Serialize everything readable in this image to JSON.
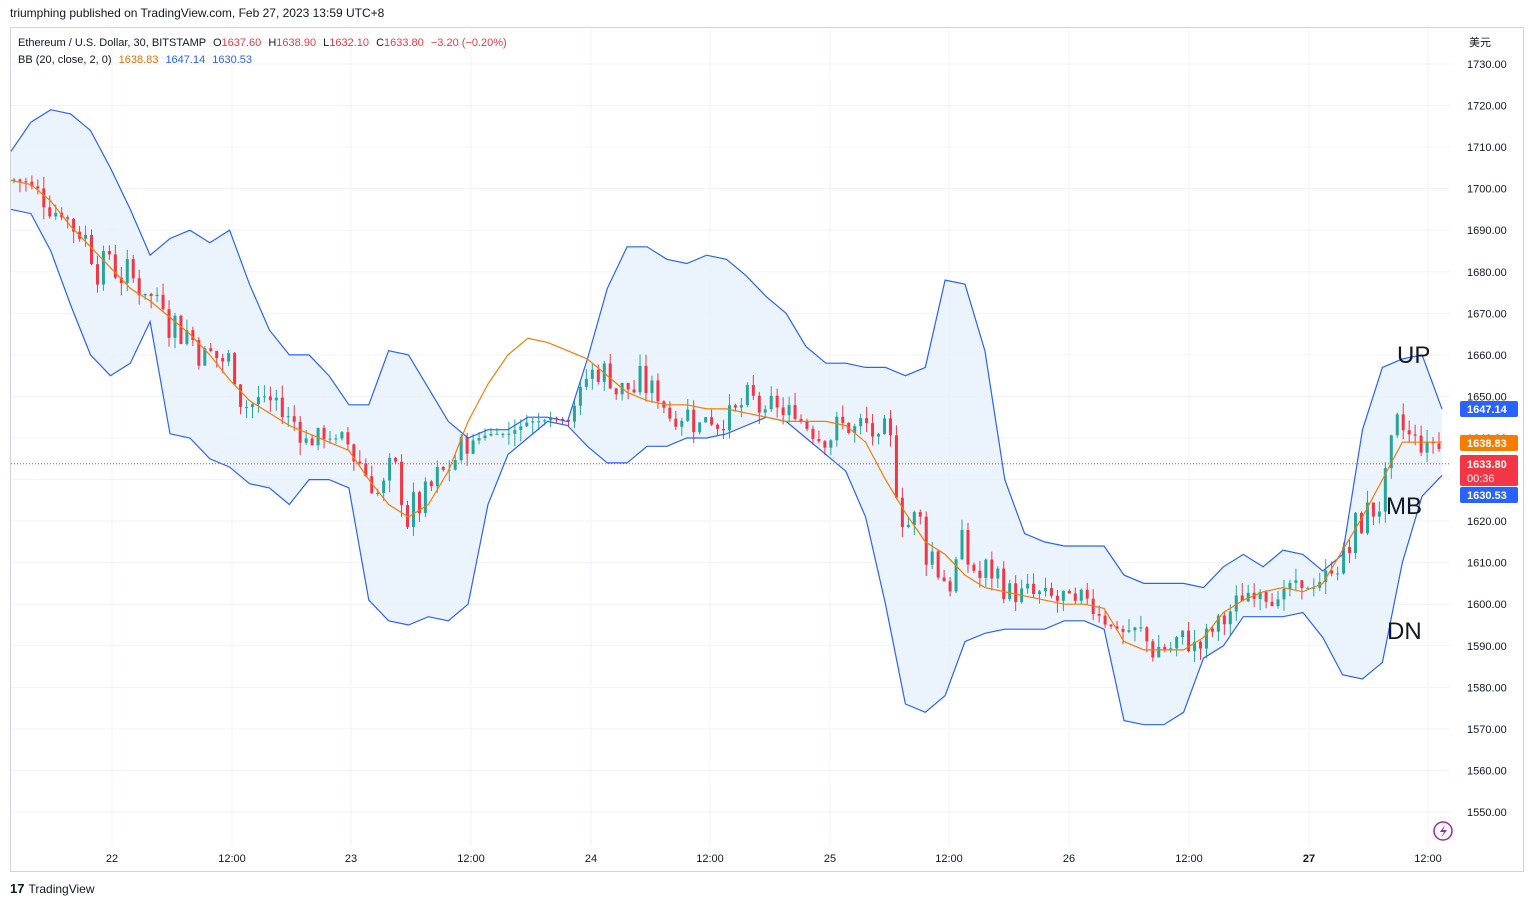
{
  "header": {
    "published": "triumphing published on TradingView.com, Feb 27, 2023 13:59 UTC+8"
  },
  "legend": {
    "symbol": "Ethereum / U.S. Dollar, 30, BITSTAMP",
    "o_label": "O",
    "o": "1637.60",
    "h_label": "H",
    "h": "1638.90",
    "l_label": "L",
    "l": "1632.10",
    "c_label": "C",
    "c": "1633.80",
    "change": "−3.20 (−0.20%)",
    "bb_label": "BB (20, close, 2, 0)",
    "bb_mid": "1638.83",
    "bb_up": "1647.14",
    "bb_dn": "1630.53"
  },
  "currency": "美元",
  "footer": {
    "brand": "TradingView"
  },
  "colors": {
    "up": "#26a69a",
    "down": "#f23645",
    "upper_band": "#2962ff",
    "basis": "#f57c00",
    "fill": "#e8f1fb"
  },
  "chart_data": {
    "type": "candlestick",
    "y_ticks": [
      "1730.00",
      "1720.00",
      "1710.00",
      "1700.00",
      "1690.00",
      "1680.00",
      "1670.00",
      "1660.00",
      "1650.00",
      "1640.00",
      "1630.00",
      "1620.00",
      "1610.00",
      "1600.00",
      "1590.00",
      "1580.00",
      "1570.00",
      "1560.00",
      "1550.00"
    ],
    "x_ticks": [
      "22",
      "12:00",
      "23",
      "12:00",
      "24",
      "12:00",
      "25",
      "12:00",
      "26",
      "12:00",
      "27",
      "12:00"
    ],
    "ylim": [
      1546,
      1733
    ],
    "annotations": [
      "UP",
      "MB",
      "DN"
    ],
    "price_labels": {
      "upper": "1647.14",
      "basis": "1638.83",
      "last": "1633.80",
      "countdown": "00:36",
      "lower": "1630.53"
    },
    "series": [
      {
        "name": "Upper",
        "values": [
          1709,
          1716,
          1719,
          1718,
          1714,
          1705,
          1695,
          1684,
          1688,
          1690,
          1687,
          1690,
          1677,
          1666,
          1660,
          1660,
          1655,
          1648,
          1648,
          1661,
          1660,
          1652,
          1644,
          1640,
          1642,
          1642,
          1645,
          1645,
          1644,
          1659,
          1676,
          1686,
          1686,
          1683,
          1682,
          1684,
          1683,
          1679,
          1674,
          1670,
          1662,
          1658,
          1658,
          1657,
          1657,
          1655,
          1657,
          1678,
          1677,
          1661,
          1630,
          1617,
          1615,
          1614,
          1614,
          1614,
          1607,
          1605,
          1605,
          1605,
          1604,
          1609,
          1612,
          1609,
          1613,
          1612,
          1608,
          1612,
          1642,
          1657,
          1659,
          1660,
          1647
        ]
      },
      {
        "name": "Basis",
        "values": [
          1702,
          1701,
          1697,
          1691,
          1686,
          1681,
          1676,
          1673,
          1669,
          1665,
          1660,
          1654,
          1649,
          1646,
          1643,
          1641,
          1639,
          1637,
          1630,
          1624,
          1621,
          1624,
          1632,
          1644,
          1653,
          1660,
          1664,
          1663,
          1661,
          1659,
          1655,
          1651,
          1649,
          1648,
          1648,
          1647,
          1647,
          1646,
          1645,
          1644,
          1644,
          1644,
          1643,
          1639,
          1630,
          1622,
          1615,
          1612,
          1607,
          1604,
          1603,
          1602,
          1601,
          1600,
          1600,
          1599,
          1591,
          1589,
          1589,
          1589,
          1592,
          1598,
          1601,
          1603,
          1604,
          1603,
          1605,
          1613,
          1621,
          1630,
          1639,
          1639,
          1639
        ]
      },
      {
        "name": "Lower",
        "values": [
          1695,
          1694,
          1685,
          1672,
          1660,
          1655,
          1658,
          1668,
          1641,
          1640,
          1635,
          1633,
          1629,
          1628,
          1624,
          1630,
          1630,
          1628,
          1601,
          1596,
          1595,
          1597,
          1596,
          1600,
          1624,
          1636,
          1640,
          1644,
          1643,
          1638,
          1634,
          1634,
          1638,
          1638,
          1640,
          1640,
          1641,
          1643,
          1645,
          1644,
          1640,
          1636,
          1632,
          1621,
          1600,
          1576,
          1574,
          1578,
          1591,
          1593,
          1594,
          1594,
          1594,
          1596,
          1596,
          1594,
          1572,
          1571,
          1571,
          1574,
          1587,
          1590,
          1597,
          1597,
          1597,
          1598,
          1592,
          1583,
          1582,
          1586,
          1610,
          1626,
          1631
        ]
      }
    ]
  }
}
